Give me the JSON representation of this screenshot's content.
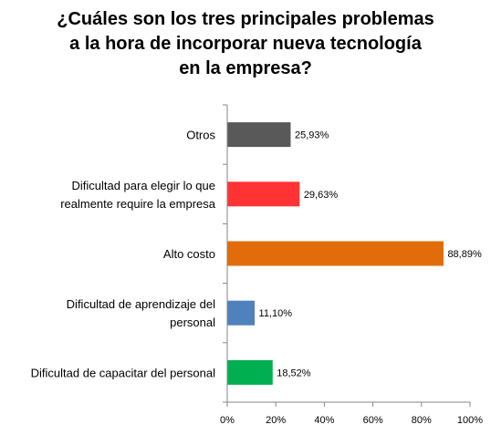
{
  "chart_data": {
    "type": "bar",
    "orientation": "horizontal",
    "title_lines": [
      "¿Cuáles son los tres principales problemas",
      "a la hora de incorporar nueva tecnología",
      "en la empresa?"
    ],
    "categories": [
      [
        "Otros"
      ],
      [
        "Dificultad para elegir lo que",
        "realmente require la empresa"
      ],
      [
        "Alto costo"
      ],
      [
        "Dificultad de aprendizaje del",
        "personal"
      ],
      [
        "Dificultad de capacitar del personal"
      ]
    ],
    "values": [
      25.93,
      29.63,
      88.89,
      11.1,
      18.52
    ],
    "value_labels": [
      "25,93%",
      "29,63%",
      "88,89%",
      "11,10%",
      "18,52%"
    ],
    "colors": [
      "#595959",
      "#ff3333",
      "#e36c0a",
      "#4f81bd",
      "#00b050"
    ],
    "xlim": [
      0,
      100
    ],
    "x_ticks": [
      "0%",
      "20%",
      "40%",
      "60%",
      "80%",
      "100%"
    ],
    "grid": false,
    "legend": "none"
  }
}
